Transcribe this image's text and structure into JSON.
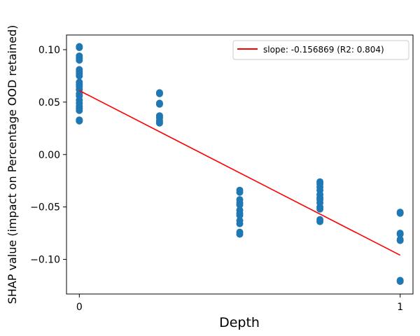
{
  "chart_data": {
    "type": "scatter",
    "title": "",
    "xlabel": "Depth",
    "ylabel": "SHAP value (impact on Percentage OOD retained)",
    "xlim": [
      -0.04,
      1.04
    ],
    "ylim": [
      -0.133,
      0.114
    ],
    "x_ticks": [
      0,
      1
    ],
    "x_tick_labels": [
      "0",
      "1"
    ],
    "y_ticks": [
      0.1,
      0.05,
      0.0,
      -0.05,
      -0.1
    ],
    "y_tick_labels": [
      "0.10",
      "0.05",
      "0.00",
      "−0.05",
      "−0.10"
    ],
    "grid": false,
    "legend_position": "top-right",
    "point_color": "#1f77b4",
    "fit_color": "#ff0000",
    "series": [
      {
        "type": "scatter",
        "points": [
          [
            0,
            0.103
          ],
          [
            0,
            0.102
          ],
          [
            0,
            0.094
          ],
          [
            0,
            0.092
          ],
          [
            0,
            0.09
          ],
          [
            0,
            0.081
          ],
          [
            0,
            0.079
          ],
          [
            0,
            0.077
          ],
          [
            0,
            0.075
          ],
          [
            0,
            0.069
          ],
          [
            0,
            0.067
          ],
          [
            0,
            0.065
          ],
          [
            0,
            0.062
          ],
          [
            0,
            0.058
          ],
          [
            0,
            0.056
          ],
          [
            0,
            0.052
          ],
          [
            0,
            0.049
          ],
          [
            0,
            0.046
          ],
          [
            0,
            0.044
          ],
          [
            0,
            0.042
          ],
          [
            0,
            0.033
          ],
          [
            0,
            0.032
          ],
          [
            0.25,
            0.059
          ],
          [
            0.25,
            0.058
          ],
          [
            0.25,
            0.049
          ],
          [
            0.25,
            0.048
          ],
          [
            0.25,
            0.037
          ],
          [
            0.25,
            0.035
          ],
          [
            0.25,
            0.032
          ],
          [
            0.25,
            0.03
          ],
          [
            0.5,
            -0.034
          ],
          [
            0.5,
            -0.036
          ],
          [
            0.5,
            -0.043
          ],
          [
            0.5,
            -0.046
          ],
          [
            0.5,
            -0.048
          ],
          [
            0.5,
            -0.053
          ],
          [
            0.5,
            -0.056
          ],
          [
            0.5,
            -0.058
          ],
          [
            0.5,
            -0.063
          ],
          [
            0.5,
            -0.066
          ],
          [
            0.5,
            -0.074
          ],
          [
            0.5,
            -0.076
          ],
          [
            0.75,
            -0.026
          ],
          [
            0.75,
            -0.028
          ],
          [
            0.75,
            -0.031
          ],
          [
            0.75,
            -0.034
          ],
          [
            0.75,
            -0.038
          ],
          [
            0.75,
            -0.041
          ],
          [
            0.75,
            -0.043
          ],
          [
            0.75,
            -0.046
          ],
          [
            0.75,
            -0.05
          ],
          [
            0.75,
            -0.052
          ],
          [
            0.75,
            -0.062
          ],
          [
            0.75,
            -0.064
          ],
          [
            1,
            -0.055
          ],
          [
            1,
            -0.056
          ],
          [
            1,
            -0.075
          ],
          [
            1,
            -0.076
          ],
          [
            1,
            -0.081
          ],
          [
            1,
            -0.082
          ],
          [
            1,
            -0.12
          ],
          [
            1,
            -0.121
          ]
        ]
      },
      {
        "type": "line",
        "name": "slope: -0.156869 (R2: 0.804)",
        "x": [
          0,
          1
        ],
        "y": [
          0.061,
          -0.096
        ]
      }
    ]
  }
}
